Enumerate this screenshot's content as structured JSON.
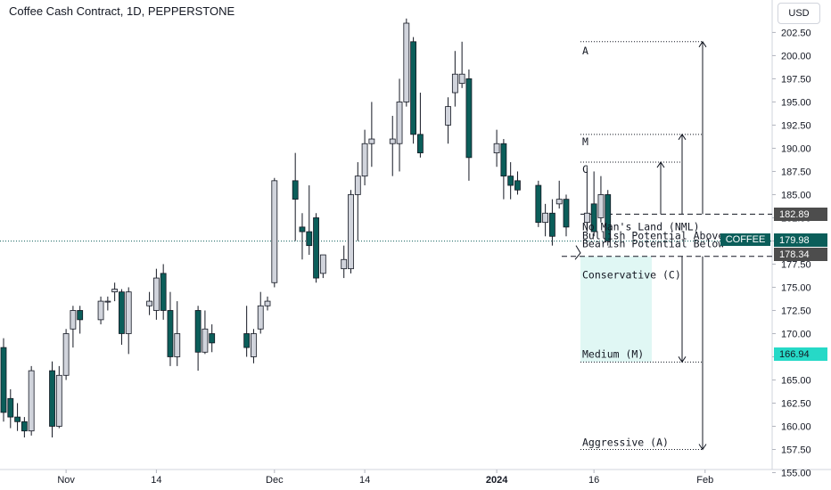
{
  "header": {
    "title": "Coffee Cash Contract, 1D, PEPPERSTONE",
    "currency_button": "USD"
  },
  "colors": {
    "up": "#d1d4dc",
    "down": "#0b5e5a",
    "outline": "#131722",
    "zone": "#e0f7f4",
    "accent_teal": "#0b5e5a",
    "tag_gray": "#4d4d4d",
    "tag_green": "#26d9c7"
  },
  "tags": {
    "symbol": "COFFEE",
    "last_price": "179.98",
    "nml_top": "182.89",
    "nml_bottom": "178.34",
    "medium": "166.94"
  },
  "chart_data": {
    "type": "candlestick",
    "title": "Coffee Cash Contract, 1D, PEPPERSTONE",
    "ylim": [
      153.8,
      206.0
    ],
    "y_ticks": [
      "202.50",
      "200.00",
      "197.50",
      "195.00",
      "192.50",
      "190.00",
      "187.50",
      "185.00",
      "182.50",
      "180.00",
      "177.50",
      "175.00",
      "172.50",
      "170.00",
      "167.50",
      "165.00",
      "162.50",
      "160.00",
      "157.50",
      "155.00"
    ],
    "x_ticks": [
      {
        "label": "Nov",
        "date": "2023-11-01"
      },
      {
        "label": "14",
        "date": "2023-11-14"
      },
      {
        "label": "Dec",
        "date": "2023-12-01"
      },
      {
        "label": "14",
        "date": "2023-12-14"
      },
      {
        "label": "2024",
        "date": "2024-01-02"
      },
      {
        "label": "16",
        "date": "2024-01-16"
      },
      {
        "label": "Feb",
        "date": "2024-02-01"
      }
    ],
    "candles": [
      {
        "date": "2023-10-23",
        "o": 168.5,
        "h": 169.5,
        "l": 160.5,
        "c": 161.5
      },
      {
        "date": "2023-10-24",
        "o": 163.0,
        "h": 164.0,
        "l": 159.8,
        "c": 161.0
      },
      {
        "date": "2023-10-25",
        "o": 161.0,
        "h": 162.5,
        "l": 159.5,
        "c": 160.5
      },
      {
        "date": "2023-10-26",
        "o": 160.5,
        "h": 161.0,
        "l": 158.8,
        "c": 159.5
      },
      {
        "date": "2023-10-27",
        "o": 159.5,
        "h": 166.5,
        "l": 159.0,
        "c": 166.0
      },
      {
        "date": "2023-10-30",
        "o": 166.0,
        "h": 167.0,
        "l": 158.8,
        "c": 160.0
      },
      {
        "date": "2023-10-31",
        "o": 160.0,
        "h": 166.5,
        "l": 159.8,
        "c": 165.5
      },
      {
        "date": "2023-11-01",
        "o": 165.5,
        "h": 170.5,
        "l": 165.0,
        "c": 170.0
      },
      {
        "date": "2023-11-02",
        "o": 170.5,
        "h": 173.0,
        "l": 168.5,
        "c": 172.5
      },
      {
        "date": "2023-11-03",
        "o": 172.5,
        "h": 173.0,
        "l": 170.0,
        "c": 171.5
      },
      {
        "date": "2023-11-06",
        "o": 171.5,
        "h": 174.0,
        "l": 171.0,
        "c": 173.5
      },
      {
        "date": "2023-11-07",
        "o": 173.5,
        "h": 174.0,
        "l": 172.5,
        "c": 173.5
      },
      {
        "date": "2023-11-08",
        "o": 174.5,
        "h": 175.5,
        "l": 173.5,
        "c": 174.8
      },
      {
        "date": "2023-11-09",
        "o": 174.5,
        "h": 174.8,
        "l": 168.8,
        "c": 170.0
      },
      {
        "date": "2023-11-10",
        "o": 170.0,
        "h": 175.0,
        "l": 167.8,
        "c": 174.5
      },
      {
        "date": "2023-11-13",
        "o": 173.0,
        "h": 174.5,
        "l": 172.0,
        "c": 173.5
      },
      {
        "date": "2023-11-14",
        "o": 172.5,
        "h": 177.0,
        "l": 171.5,
        "c": 176.0
      },
      {
        "date": "2023-11-15",
        "o": 176.5,
        "h": 177.5,
        "l": 171.5,
        "c": 172.5
      },
      {
        "date": "2023-11-16",
        "o": 172.5,
        "h": 174.5,
        "l": 166.5,
        "c": 167.5
      },
      {
        "date": "2023-11-17",
        "o": 167.5,
        "h": 173.5,
        "l": 166.5,
        "c": 170.0
      },
      {
        "date": "2023-11-20",
        "o": 172.5,
        "h": 173.0,
        "l": 166.0,
        "c": 168.0
      },
      {
        "date": "2023-11-21",
        "o": 168.0,
        "h": 172.5,
        "l": 167.8,
        "c": 170.5
      },
      {
        "date": "2023-11-22",
        "o": 170.0,
        "h": 171.0,
        "l": 168.0,
        "c": 169.0
      },
      {
        "date": "2023-11-27",
        "o": 170.0,
        "h": 173.0,
        "l": 167.5,
        "c": 168.5
      },
      {
        "date": "2023-11-28",
        "o": 167.5,
        "h": 170.5,
        "l": 166.8,
        "c": 170.0
      },
      {
        "date": "2023-11-29",
        "o": 170.5,
        "h": 174.5,
        "l": 170.0,
        "c": 173.0
      },
      {
        "date": "2023-11-30",
        "o": 173.0,
        "h": 174.0,
        "l": 172.5,
        "c": 173.5
      },
      {
        "date": "2023-12-01",
        "o": 175.5,
        "h": 186.8,
        "l": 175.0,
        "c": 186.5
      },
      {
        "date": "2023-12-04",
        "o": 186.5,
        "h": 189.5,
        "l": 180.0,
        "c": 184.5
      },
      {
        "date": "2023-12-05",
        "o": 181.5,
        "h": 183.0,
        "l": 178.0,
        "c": 181.0
      },
      {
        "date": "2023-12-06",
        "o": 181.0,
        "h": 186.0,
        "l": 178.5,
        "c": 179.5
      },
      {
        "date": "2023-12-07",
        "o": 182.5,
        "h": 183.0,
        "l": 175.5,
        "c": 176.0
      },
      {
        "date": "2023-12-08",
        "o": 176.5,
        "h": 178.0,
        "l": 176.0,
        "c": 178.5
      },
      {
        "date": "2023-12-11",
        "o": 177.0,
        "h": 179.5,
        "l": 176.0,
        "c": 178.0
      },
      {
        "date": "2023-12-12",
        "o": 177.0,
        "h": 185.5,
        "l": 176.5,
        "c": 185.0
      },
      {
        "date": "2023-12-13",
        "o": 185.0,
        "h": 188.5,
        "l": 180.0,
        "c": 187.0
      },
      {
        "date": "2023-12-14",
        "o": 187.0,
        "h": 192.0,
        "l": 186.0,
        "c": 190.5
      },
      {
        "date": "2023-12-15",
        "o": 190.5,
        "h": 195.0,
        "l": 188.0,
        "c": 191.0
      },
      {
        "date": "2023-12-18",
        "o": 190.5,
        "h": 193.5,
        "l": 187.0,
        "c": 191.0
      },
      {
        "date": "2023-12-19",
        "o": 190.5,
        "h": 197.5,
        "l": 187.5,
        "c": 195.0
      },
      {
        "date": "2023-12-20",
        "o": 195.0,
        "h": 204.0,
        "l": 194.5,
        "c": 203.5
      },
      {
        "date": "2023-12-21",
        "o": 201.5,
        "h": 202.0,
        "l": 190.5,
        "c": 191.5
      },
      {
        "date": "2023-12-22",
        "o": 191.5,
        "h": 196.0,
        "l": 189.0,
        "c": 189.5
      },
      {
        "date": "2023-12-26",
        "o": 192.5,
        "h": 195.5,
        "l": 190.5,
        "c": 194.5
      },
      {
        "date": "2023-12-27",
        "o": 196.0,
        "h": 200.5,
        "l": 194.5,
        "c": 198.0
      },
      {
        "date": "2023-12-28",
        "o": 197.0,
        "h": 201.5,
        "l": 196.5,
        "c": 198.0
      },
      {
        "date": "2023-12-29",
        "o": 197.5,
        "h": 198.5,
        "l": 186.5,
        "c": 189.0
      },
      {
        "date": "2024-01-02",
        "o": 189.5,
        "h": 192.0,
        "l": 188.0,
        "c": 190.5
      },
      {
        "date": "2024-01-03",
        "o": 190.5,
        "h": 191.0,
        "l": 184.5,
        "c": 187.0
      },
      {
        "date": "2024-01-04",
        "o": 187.0,
        "h": 188.5,
        "l": 184.5,
        "c": 186.0
      },
      {
        "date": "2024-01-05",
        "o": 186.5,
        "h": 187.5,
        "l": 185.0,
        "c": 185.5
      },
      {
        "date": "2024-01-08",
        "o": 186.0,
        "h": 186.5,
        "l": 181.5,
        "c": 182.0
      },
      {
        "date": "2024-01-09",
        "o": 182.0,
        "h": 184.0,
        "l": 180.5,
        "c": 183.0
      },
      {
        "date": "2024-01-10",
        "o": 183.0,
        "h": 184.5,
        "l": 179.5,
        "c": 180.5
      },
      {
        "date": "2024-01-11",
        "o": 184.0,
        "h": 186.5,
        "l": 183.5,
        "c": 184.5
      },
      {
        "date": "2024-01-12",
        "o": 184.5,
        "h": 185.0,
        "l": 180.5,
        "c": 181.5
      },
      {
        "date": "2024-01-15",
        "o": 182.0,
        "h": 188.0,
        "l": 181.0,
        "c": 183.0
      },
      {
        "date": "2024-01-16",
        "o": 184.0,
        "h": 187.5,
        "l": 180.5,
        "c": 181.0
      },
      {
        "date": "2024-01-17",
        "o": 182.5,
        "h": 187.0,
        "l": 182.0,
        "c": 185.0
      },
      {
        "date": "2024-01-18",
        "o": 185.0,
        "h": 185.5,
        "l": 179.5,
        "c": 180.0
      }
    ],
    "levels": {
      "aggressive_target": 157.5,
      "medium_target": 166.94,
      "conservative_target": 177.5,
      "nml_top": 182.89,
      "nml_bottom": 178.34,
      "last_price": 179.98,
      "c_level": 188.5,
      "m_level": 191.5,
      "a_level": 201.5
    },
    "annotations": {
      "nml": "No Man's Land (NML)",
      "bull": "Bullish Potential Above",
      "bear": "Bearish Potential Below",
      "conservative": "Conservative (C)",
      "medium": "Medium (M)",
      "aggressive": "Aggressive (A)",
      "a_label": "A",
      "m_label": "M",
      "c_label": "C"
    }
  }
}
